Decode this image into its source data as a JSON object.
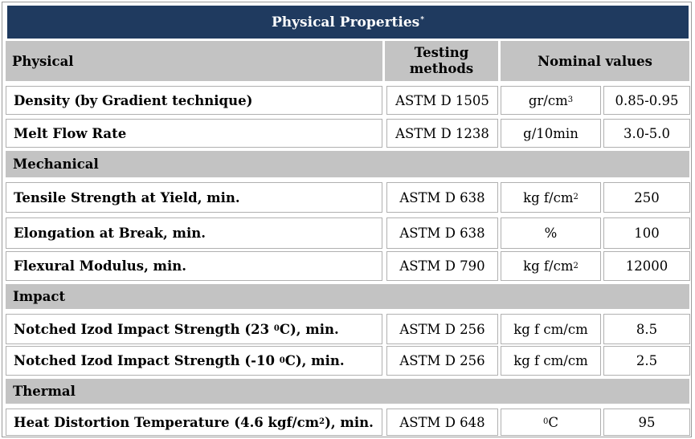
{
  "title": {
    "text": "Physical Properties",
    "mark": "*"
  },
  "header": {
    "physical": "Physical",
    "testing_line1": "Testing",
    "testing_line2": "methods",
    "nominal": "Nominal values"
  },
  "rows": {
    "density": {
      "label": "Density  (by Gradient technique)",
      "method": "ASTM D 1505",
      "unit_base": "gr/cm",
      "unit_sup": "3",
      "value": "0.85-0.95"
    },
    "mfr": {
      "label": "Melt Flow Rate",
      "method": "ASTM D 1238",
      "unit": "g/10min",
      "value": "3.0-5.0"
    },
    "tensile": {
      "label": "Tensile Strength at Yield, min.",
      "method": "ASTM D 638",
      "unit_base": "kg f/cm",
      "unit_sup": "2",
      "value": "250"
    },
    "elong": {
      "label": "Elongation at Break, min.",
      "method": "ASTM D 638",
      "unit": "%",
      "value": "100"
    },
    "flex": {
      "label": "Flexural Modulus, min.",
      "method": "ASTM D 790",
      "unit_base": "kg f/cm",
      "unit_sup": "2",
      "value": "12000"
    },
    "izod23": {
      "label_pre": "Notched Izod Impact Strength (23 ",
      "label_sup": "0",
      "label_post": "C), min.",
      "method": "ASTM D 256",
      "unit": "kg f cm/cm",
      "value": "8.5"
    },
    "izod10": {
      "label_pre": "Notched Izod Impact Strength (-10 ",
      "label_sup": "0",
      "label_post": "C), min.",
      "method": "ASTM D 256",
      "unit": "kg f cm/cm",
      "value": "2.5"
    },
    "hdt": {
      "label_pre": "Heat Distortion Temperature (4.6 kgf/cm",
      "label_sup": "2",
      "label_post": "), min.",
      "method": "ASTM D 648",
      "unit_sup": "0",
      "unit_post": "C",
      "value": "95"
    }
  },
  "sections": {
    "mechanical": "Mechanical",
    "impact": "Impact",
    "thermal": "Thermal"
  }
}
